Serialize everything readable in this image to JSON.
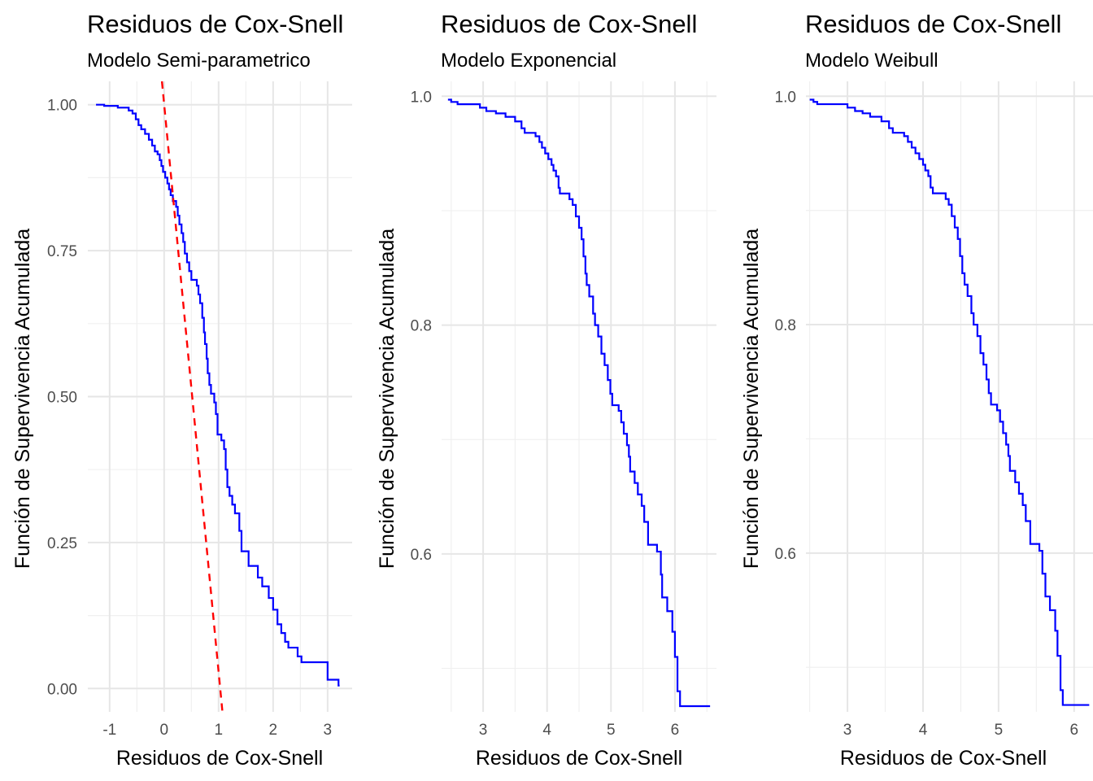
{
  "chart_data": [
    {
      "type": "line",
      "title": "Residuos de Cox-Snell",
      "subtitle": "Modelo Semi-parametrico",
      "xlabel": "Residuos de Cox-Snell",
      "ylabel": "Función de Supervivencia Acumulada",
      "xlim": [
        -1.4,
        3.45
      ],
      "ylim": [
        -0.04,
        1.04
      ],
      "x_ticks": [
        -1,
        0,
        1,
        2,
        3
      ],
      "x_tick_labels": [
        "-1",
        "0",
        "1",
        "2",
        "3"
      ],
      "y_ticks": [
        0.0,
        0.25,
        0.5,
        0.75,
        1.0
      ],
      "y_tick_labels": [
        "0.00",
        "0.25",
        "0.50",
        "0.75",
        "1.00"
      ],
      "grid": true,
      "series": [
        {
          "color": "#0000FF",
          "style": "step",
          "points": [
            [
              -1.25,
              1.0
            ],
            [
              -1.1,
              0.998
            ],
            [
              -0.85,
              0.995
            ],
            [
              -0.65,
              0.99
            ],
            [
              -0.58,
              0.985
            ],
            [
              -0.52,
              0.975
            ],
            [
              -0.47,
              0.965
            ],
            [
              -0.42,
              0.958
            ],
            [
              -0.35,
              0.95
            ],
            [
              -0.28,
              0.94
            ],
            [
              -0.22,
              0.93
            ],
            [
              -0.17,
              0.92
            ],
            [
              -0.12,
              0.915
            ],
            [
              -0.08,
              0.905
            ],
            [
              -0.05,
              0.895
            ],
            [
              -0.02,
              0.885
            ],
            [
              0.02,
              0.875
            ],
            [
              0.06,
              0.865
            ],
            [
              0.09,
              0.855
            ],
            [
              0.12,
              0.845
            ],
            [
              0.16,
              0.835
            ],
            [
              0.22,
              0.825
            ],
            [
              0.25,
              0.81
            ],
            [
              0.28,
              0.795
            ],
            [
              0.32,
              0.78
            ],
            [
              0.35,
              0.765
            ],
            [
              0.38,
              0.745
            ],
            [
              0.42,
              0.73
            ],
            [
              0.46,
              0.715
            ],
            [
              0.5,
              0.7
            ],
            [
              0.6,
              0.69
            ],
            [
              0.63,
              0.675
            ],
            [
              0.66,
              0.66
            ],
            [
              0.7,
              0.635
            ],
            [
              0.73,
              0.61
            ],
            [
              0.75,
              0.59
            ],
            [
              0.78,
              0.565
            ],
            [
              0.8,
              0.54
            ],
            [
              0.83,
              0.52
            ],
            [
              0.86,
              0.505
            ],
            [
              0.92,
              0.49
            ],
            [
              0.95,
              0.47
            ],
            [
              0.98,
              0.435
            ],
            [
              1.05,
              0.425
            ],
            [
              1.1,
              0.41
            ],
            [
              1.13,
              0.375
            ],
            [
              1.16,
              0.345
            ],
            [
              1.2,
              0.33
            ],
            [
              1.25,
              0.315
            ],
            [
              1.3,
              0.3
            ],
            [
              1.38,
              0.27
            ],
            [
              1.42,
              0.235
            ],
            [
              1.55,
              0.21
            ],
            [
              1.72,
              0.19
            ],
            [
              1.8,
              0.175
            ],
            [
              1.92,
              0.155
            ],
            [
              2.0,
              0.135
            ],
            [
              2.08,
              0.11
            ],
            [
              2.15,
              0.095
            ],
            [
              2.22,
              0.08
            ],
            [
              2.28,
              0.07
            ],
            [
              2.45,
              0.055
            ],
            [
              2.52,
              0.045
            ],
            [
              3.0,
              0.015
            ],
            [
              3.2,
              0.005
            ]
          ],
          "x_end": 3.22
        },
        {
          "color": "#FF0000",
          "style": "dashed",
          "points": [
            [
              -0.04,
              1.04
            ],
            [
              1.07,
              -0.04
            ]
          ]
        }
      ]
    },
    {
      "type": "line",
      "title": "Residuos de Cox-Snell",
      "subtitle": "Modelo Exponencial",
      "xlabel": "Residuos de Cox-Snell",
      "ylabel": "Función de Supervivencia Acumulada",
      "xlim": [
        2.35,
        6.65
      ],
      "ylim": [
        0.462,
        1.013
      ],
      "x_ticks": [
        3,
        4,
        5,
        6
      ],
      "x_tick_labels": [
        "3",
        "4",
        "5",
        "6"
      ],
      "y_ticks": [
        0.6,
        0.8,
        1.0
      ],
      "y_tick_labels": [
        "0.6",
        "0.8",
        "1.0"
      ],
      "grid": true,
      "series": [
        {
          "color": "#0000FF",
          "style": "step",
          "points": [
            [
              2.45,
              0.997
            ],
            [
              2.5,
              0.995
            ],
            [
              2.6,
              0.993
            ],
            [
              2.95,
              0.99
            ],
            [
              3.05,
              0.987
            ],
            [
              3.2,
              0.985
            ],
            [
              3.35,
              0.982
            ],
            [
              3.5,
              0.978
            ],
            [
              3.6,
              0.972
            ],
            [
              3.65,
              0.968
            ],
            [
              3.82,
              0.965
            ],
            [
              3.88,
              0.96
            ],
            [
              3.92,
              0.955
            ],
            [
              3.97,
              0.95
            ],
            [
              4.02,
              0.945
            ],
            [
              4.07,
              0.94
            ],
            [
              4.1,
              0.935
            ],
            [
              4.14,
              0.93
            ],
            [
              4.18,
              0.92
            ],
            [
              4.2,
              0.915
            ],
            [
              4.35,
              0.91
            ],
            [
              4.4,
              0.905
            ],
            [
              4.45,
              0.895
            ],
            [
              4.5,
              0.885
            ],
            [
              4.54,
              0.875
            ],
            [
              4.57,
              0.86
            ],
            [
              4.6,
              0.845
            ],
            [
              4.62,
              0.835
            ],
            [
              4.66,
              0.825
            ],
            [
              4.72,
              0.81
            ],
            [
              4.75,
              0.8
            ],
            [
              4.8,
              0.79
            ],
            [
              4.85,
              0.775
            ],
            [
              4.9,
              0.765
            ],
            [
              4.95,
              0.752
            ],
            [
              4.99,
              0.74
            ],
            [
              5.02,
              0.73
            ],
            [
              5.12,
              0.725
            ],
            [
              5.16,
              0.715
            ],
            [
              5.2,
              0.705
            ],
            [
              5.25,
              0.695
            ],
            [
              5.28,
              0.685
            ],
            [
              5.3,
              0.672
            ],
            [
              5.37,
              0.662
            ],
            [
              5.42,
              0.652
            ],
            [
              5.48,
              0.642
            ],
            [
              5.52,
              0.628
            ],
            [
              5.58,
              0.608
            ],
            [
              5.72,
              0.602
            ],
            [
              5.78,
              0.582
            ],
            [
              5.8,
              0.562
            ],
            [
              5.88,
              0.55
            ],
            [
              5.96,
              0.532
            ],
            [
              6.0,
              0.51
            ],
            [
              6.04,
              0.48
            ],
            [
              6.08,
              0.467
            ]
          ],
          "x_end": 6.55
        }
      ]
    },
    {
      "type": "line",
      "title": "Residuos de Cox-Snell",
      "subtitle": "Modelo Weibull",
      "xlabel": "Residuos de Cox-Snell",
      "ylabel": "Función de Supervivencia Acumulada",
      "xlim": [
        2.45,
        6.25
      ],
      "ylim": [
        0.461,
        1.013
      ],
      "x_ticks": [
        3,
        4,
        5,
        6
      ],
      "x_tick_labels": [
        "3",
        "4",
        "5",
        "6"
      ],
      "y_ticks": [
        0.6,
        0.8,
        1.0
      ],
      "y_tick_labels": [
        "0.6",
        "0.8",
        "1.0"
      ],
      "grid": true,
      "series": [
        {
          "color": "#0000FF",
          "style": "step",
          "points": [
            [
              2.5,
              0.997
            ],
            [
              2.55,
              0.995
            ],
            [
              2.6,
              0.993
            ],
            [
              3.0,
              0.99
            ],
            [
              3.1,
              0.987
            ],
            [
              3.2,
              0.985
            ],
            [
              3.3,
              0.982
            ],
            [
              3.45,
              0.978
            ],
            [
              3.55,
              0.972
            ],
            [
              3.6,
              0.968
            ],
            [
              3.75,
              0.965
            ],
            [
              3.8,
              0.96
            ],
            [
              3.85,
              0.955
            ],
            [
              3.9,
              0.95
            ],
            [
              3.95,
              0.945
            ],
            [
              4.0,
              0.94
            ],
            [
              4.03,
              0.935
            ],
            [
              4.07,
              0.93
            ],
            [
              4.1,
              0.92
            ],
            [
              4.13,
              0.915
            ],
            [
              4.3,
              0.91
            ],
            [
              4.34,
              0.905
            ],
            [
              4.38,
              0.895
            ],
            [
              4.42,
              0.885
            ],
            [
              4.46,
              0.875
            ],
            [
              4.49,
              0.86
            ],
            [
              4.52,
              0.845
            ],
            [
              4.55,
              0.835
            ],
            [
              4.59,
              0.825
            ],
            [
              4.64,
              0.81
            ],
            [
              4.67,
              0.8
            ],
            [
              4.72,
              0.79
            ],
            [
              4.76,
              0.775
            ],
            [
              4.8,
              0.765
            ],
            [
              4.84,
              0.752
            ],
            [
              4.87,
              0.74
            ],
            [
              4.9,
              0.73
            ],
            [
              4.98,
              0.725
            ],
            [
              5.02,
              0.715
            ],
            [
              5.06,
              0.705
            ],
            [
              5.1,
              0.695
            ],
            [
              5.13,
              0.685
            ],
            [
              5.15,
              0.672
            ],
            [
              5.22,
              0.662
            ],
            [
              5.27,
              0.652
            ],
            [
              5.32,
              0.642
            ],
            [
              5.36,
              0.628
            ],
            [
              5.42,
              0.608
            ],
            [
              5.54,
              0.602
            ],
            [
              5.58,
              0.582
            ],
            [
              5.62,
              0.562
            ],
            [
              5.68,
              0.55
            ],
            [
              5.75,
              0.532
            ],
            [
              5.78,
              0.51
            ],
            [
              5.82,
              0.48
            ],
            [
              5.85,
              0.467
            ]
          ],
          "x_end": 6.2
        }
      ]
    }
  ]
}
